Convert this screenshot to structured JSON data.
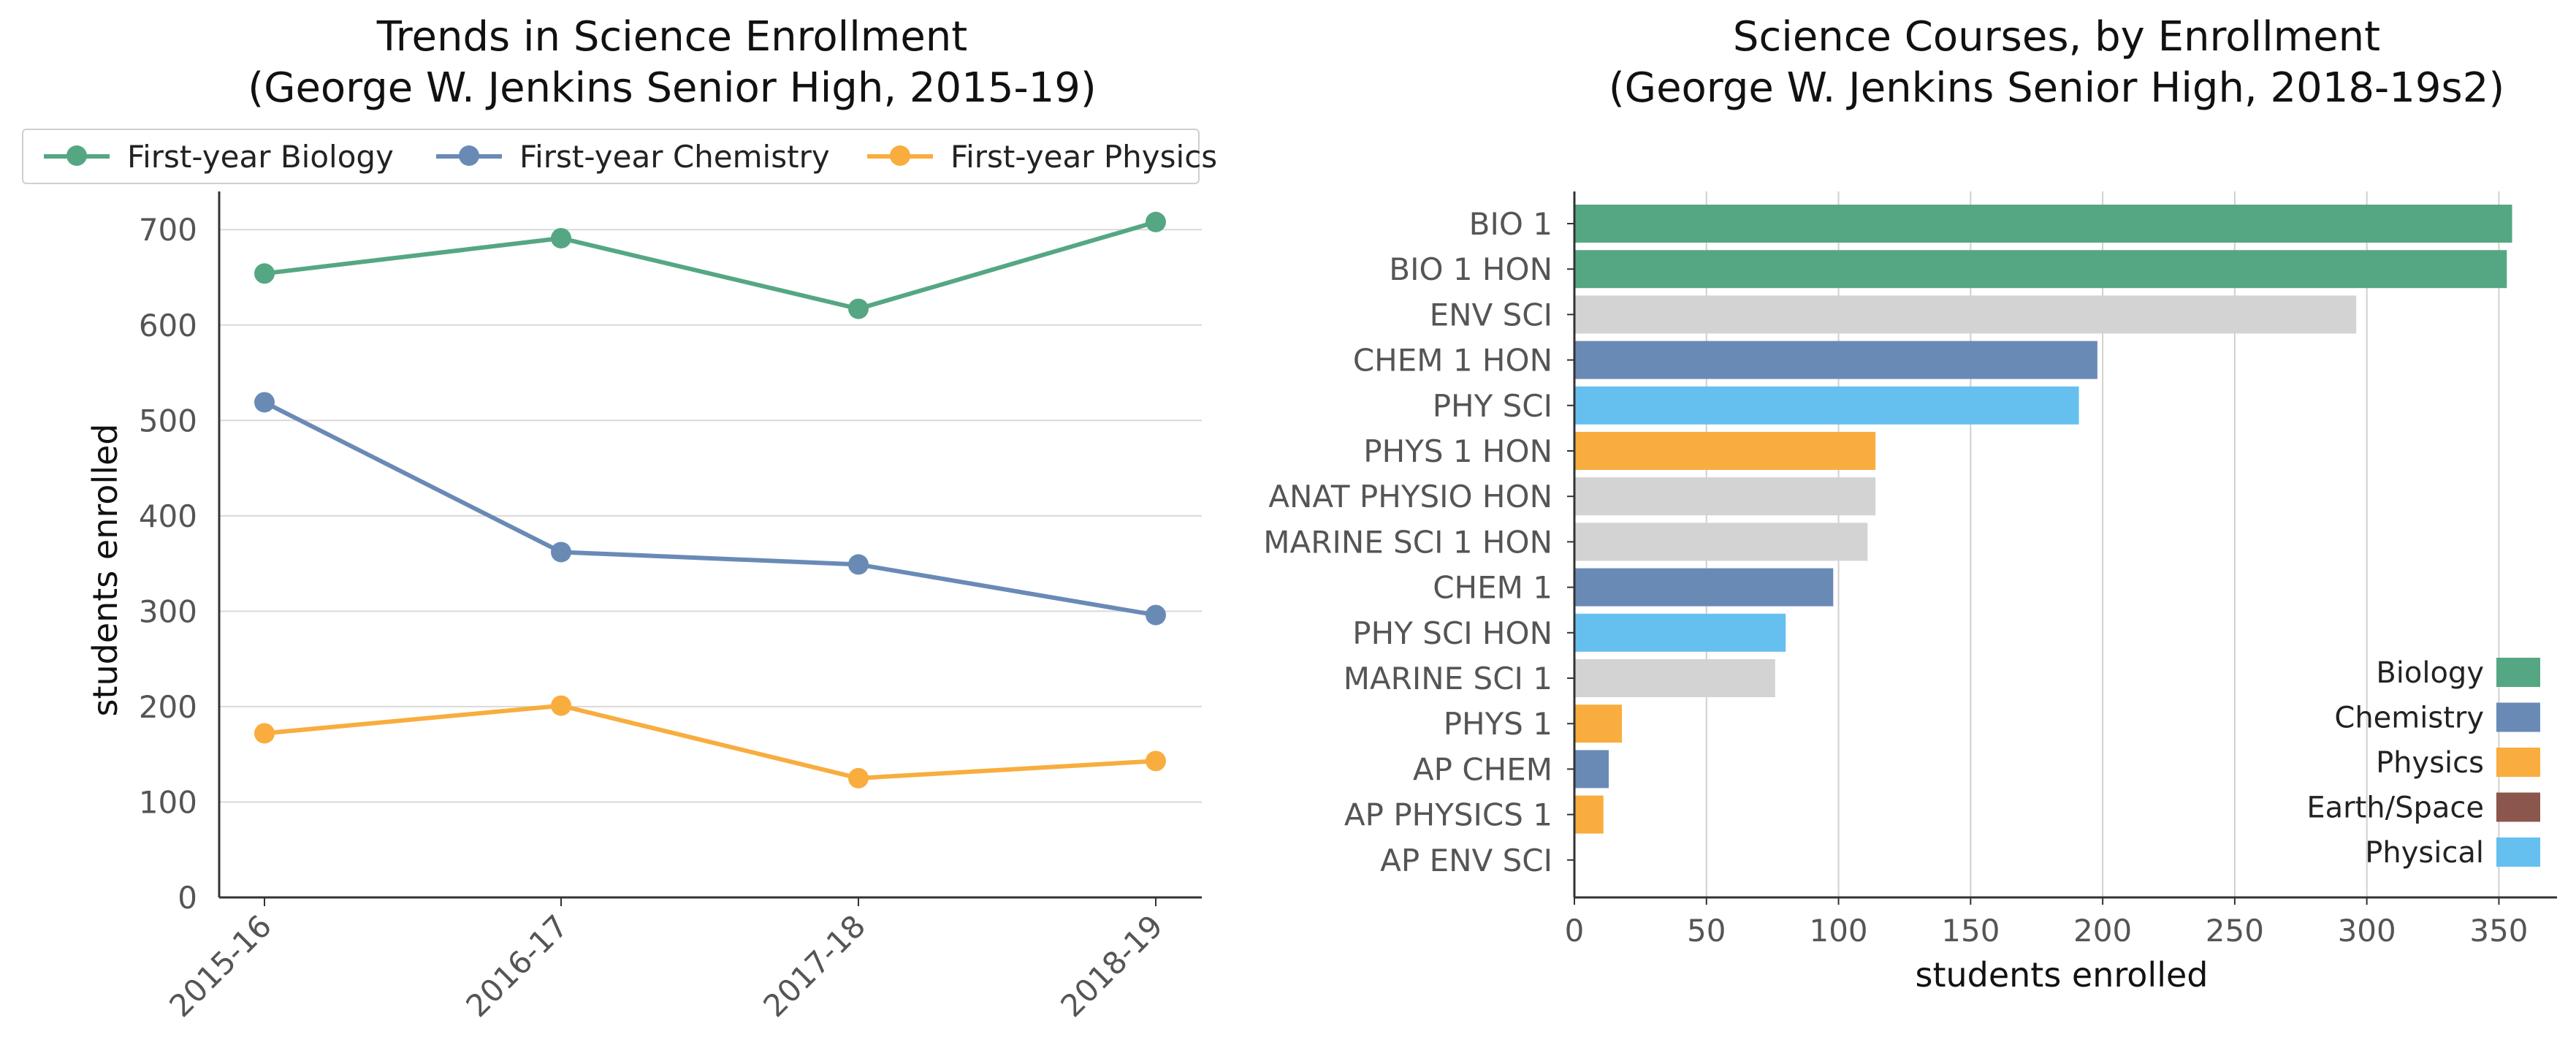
{
  "chart_data": [
    {
      "type": "line",
      "title": "Trends in Science Enrollment\n(George W. Jenkins Senior High, 2015-19)",
      "title_lines": [
        "Trends in Science Enrollment",
        "(George W. Jenkins Senior High, 2015-19)"
      ],
      "xlabel": "",
      "ylabel": "students enrolled",
      "categories": [
        "2015-16",
        "2016-17",
        "2017-18",
        "2018-19"
      ],
      "yticks": [
        0,
        100,
        200,
        300,
        400,
        500,
        600,
        700
      ],
      "ylim": [
        0,
        740
      ],
      "grid": "horizontal",
      "legend_position": "top",
      "series": [
        {
          "name": "First-year Biology",
          "color": "#55a783",
          "values": [
            654,
            691,
            617,
            708
          ]
        },
        {
          "name": "First-year Chemistry",
          "color": "#6a8ab6",
          "values": [
            519,
            362,
            349,
            296
          ]
        },
        {
          "name": "First-year Physics",
          "color": "#f8ad3e",
          "values": [
            172,
            201,
            125,
            143
          ]
        }
      ]
    },
    {
      "type": "bar",
      "orientation": "horizontal",
      "title": "Science Courses, by Enrollment\n(George W. Jenkins Senior High, 2018-19s2)",
      "title_lines": [
        "Science Courses, by Enrollment",
        "(George W. Jenkins Senior High, 2018-19s2)"
      ],
      "xlabel": "students enrolled",
      "ylabel": "",
      "xticks": [
        0,
        50,
        100,
        150,
        200,
        250,
        300,
        350
      ],
      "xlim": [
        0,
        372
      ],
      "grid": "vertical",
      "legend_position": "lower right",
      "categories": [
        "BIO 1",
        "BIO 1 HON",
        "ENV SCI",
        "CHEM 1 HON",
        "PHY SCI",
        "PHYS 1 HON",
        "ANAT PHYSIO HON",
        "MARINE SCI 1 HON",
        "CHEM 1",
        "PHY SCI HON",
        "MARINE SCI 1",
        "PHYS 1",
        "AP CHEM",
        "AP PHYSICS 1",
        "AP ENV SCI"
      ],
      "values": [
        355,
        353,
        296,
        198,
        191,
        114,
        114,
        111,
        98,
        80,
        76,
        18,
        13,
        11,
        0
      ],
      "groups": [
        "Biology",
        "Biology",
        "Other",
        "Chemistry",
        "Physical",
        "Physics",
        "Other",
        "Other",
        "Chemistry",
        "Physical",
        "Other",
        "Physics",
        "Chemistry",
        "Physics",
        "Other"
      ],
      "group_colors": {
        "Biology": "#55a783",
        "Chemistry": "#6a8ab6",
        "Physics": "#f8ad3e",
        "Earth/Space": "#8b564c",
        "Physical": "#66c0ef",
        "Other": "#d3d3d3"
      },
      "legend": [
        "Biology",
        "Chemistry",
        "Physics",
        "Earth/Space",
        "Physical"
      ]
    }
  ]
}
